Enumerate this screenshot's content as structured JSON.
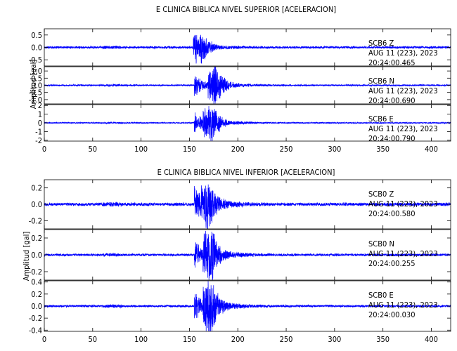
{
  "chart_data": [
    {
      "type": "line",
      "title": "E CLINICA BIBLICA NIVEL SUPERIOR [ACELERACION]",
      "ylabel": "Amplitud [gal]",
      "xlim": [
        0,
        420
      ],
      "x_ticks": [
        0,
        50,
        100,
        150,
        200,
        250,
        300,
        350,
        400
      ],
      "color": "#0000ff",
      "panels": [
        {
          "station": "SCB6",
          "component": "Z",
          "date": "AUG 11 (223), 2023",
          "time": "20:24:00.465",
          "ylim": [
            -0.75,
            0.75
          ],
          "y_ticks": [
            "0.5",
            "0.0",
            "-0.5"
          ],
          "y_tick_values": [
            0.5,
            0.0,
            -0.5
          ],
          "onset": 154,
          "peak": 0.65,
          "decay": 0.06,
          "noise": 0.05,
          "coda_start": 162,
          "coda_peak": 0.28
        },
        {
          "station": "SCB6",
          "component": "N",
          "date": "AUG 11 (223), 2023",
          "time": "20:24:00.690",
          "ylim": [
            -1.3,
            1.3
          ],
          "y_ticks": [
            "1.0",
            "0.5",
            "0.0",
            "-0.5",
            "-1.0"
          ],
          "y_tick_values": [
            1.0,
            0.5,
            0.0,
            -0.5,
            -1.0
          ],
          "onset": 155,
          "peak": 0.8,
          "decay": 0.05,
          "noise": 0.06,
          "coda_start": 175,
          "coda_peak": 1.2
        },
        {
          "station": "SCB6",
          "component": "E",
          "date": "AUG 11 (223), 2023",
          "time": "20:24:00.790",
          "ylim": [
            -2.1,
            2.1
          ],
          "y_ticks": [
            "2",
            "1",
            "0",
            "-1",
            "-2"
          ],
          "y_tick_values": [
            2,
            1,
            0,
            -1,
            -2
          ],
          "onset": 155,
          "peak": 1.4,
          "decay": 0.05,
          "noise": 0.08,
          "coda_start": 170,
          "coda_peak": 1.9
        }
      ]
    },
    {
      "type": "line",
      "title": "E CLINICA BIBLICA NIVEL INFERIOR [ACELERACION]",
      "ylabel": "Amplitud [gal]",
      "xlim": [
        0,
        420
      ],
      "x_ticks": [
        0,
        50,
        100,
        150,
        200,
        250,
        300,
        350,
        400
      ],
      "color": "#0000ff",
      "panels": [
        {
          "station": "SCB0",
          "component": "Z",
          "date": "AUG 11 (223), 2023",
          "time": "20:24:00.580",
          "ylim": [
            -0.3,
            0.3
          ],
          "y_ticks": [
            "0.2",
            "0.0",
            "-0.2"
          ],
          "y_tick_values": [
            0.2,
            0.0,
            -0.2
          ],
          "onset": 155,
          "peak": 0.25,
          "decay": 0.05,
          "noise": 0.02,
          "coda_start": 168,
          "coda_peak": 0.22
        },
        {
          "station": "SCB0",
          "component": "N",
          "date": "AUG 11 (223), 2023",
          "time": "20:24:00.255",
          "ylim": [
            -0.3,
            0.3
          ],
          "y_ticks": [
            "0.2",
            "0.0",
            "-0.2"
          ],
          "y_tick_values": [
            0.2,
            0.0,
            -0.2
          ],
          "onset": 155,
          "peak": 0.18,
          "decay": 0.05,
          "noise": 0.015,
          "coda_start": 170,
          "coda_peak": 0.25
        },
        {
          "station": "SCB0",
          "component": "E",
          "date": "AUG 11 (223), 2023",
          "time": "20:24:00.030",
          "ylim": [
            -0.42,
            0.42
          ],
          "y_ticks": [
            "0.4",
            "0.2",
            "0.0",
            "-0.2",
            "-0.4"
          ],
          "y_tick_values": [
            0.4,
            0.2,
            0.0,
            -0.2,
            -0.4
          ],
          "onset": 155,
          "peak": 0.25,
          "decay": 0.05,
          "noise": 0.02,
          "coda_start": 170,
          "coda_peak": 0.38
        }
      ]
    }
  ]
}
